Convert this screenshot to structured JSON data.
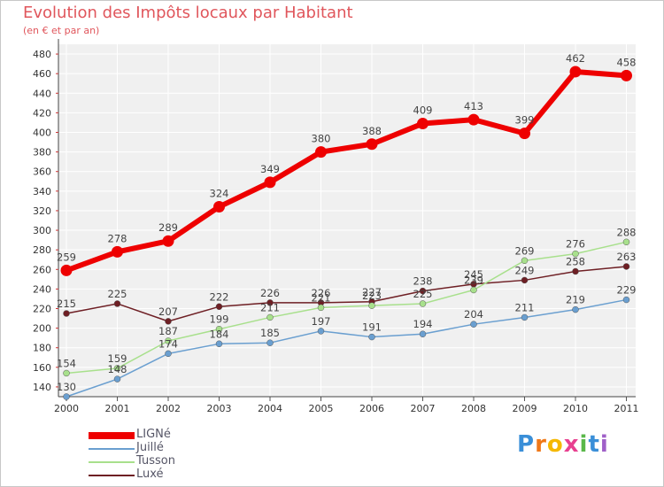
{
  "chart_data": {
    "type": "line",
    "title": "Evolution des Impôts locaux par Habitant",
    "subtitle": "(en € et par an)",
    "xlabel": "",
    "ylabel": "",
    "ylim": [
      130,
      490
    ],
    "yticks": [
      140,
      160,
      180,
      200,
      220,
      240,
      260,
      280,
      300,
      320,
      340,
      360,
      380,
      400,
      420,
      440,
      460,
      480
    ],
    "categories": [
      "2000",
      "2001",
      "2002",
      "2003",
      "2004",
      "2005",
      "2006",
      "2007",
      "2008",
      "2009",
      "2010",
      "2011"
    ],
    "grid": true,
    "legend_position": "bottom-left",
    "series": [
      {
        "name": "Luxé",
        "color": "#6e1f24",
        "values": [
          215,
          225,
          207,
          222,
          226,
          226,
          227,
          238,
          245,
          249,
          258,
          263
        ]
      },
      {
        "name": "Juillé",
        "color": "#6a9fd0",
        "values": [
          130,
          148,
          174,
          184,
          185,
          197,
          191,
          194,
          204,
          211,
          219,
          229
        ]
      },
      {
        "name": "Tusson",
        "color": "#a8e08c",
        "values": [
          154,
          159,
          187,
          199,
          211,
          221,
          223,
          225,
          239,
          269,
          276,
          288
        ]
      },
      {
        "name": "LIGNé",
        "color": "#ee0000",
        "values": [
          259,
          278,
          289,
          324,
          349,
          380,
          388,
          409,
          413,
          399,
          462,
          458
        ]
      }
    ]
  },
  "legend": [
    "LIGNé",
    "Juillé",
    "Tusson",
    "Luxé"
  ],
  "brand": {
    "text": "Proxiti",
    "letters": [
      "P",
      "r",
      "o",
      "x",
      "i",
      "t",
      "i"
    ]
  }
}
